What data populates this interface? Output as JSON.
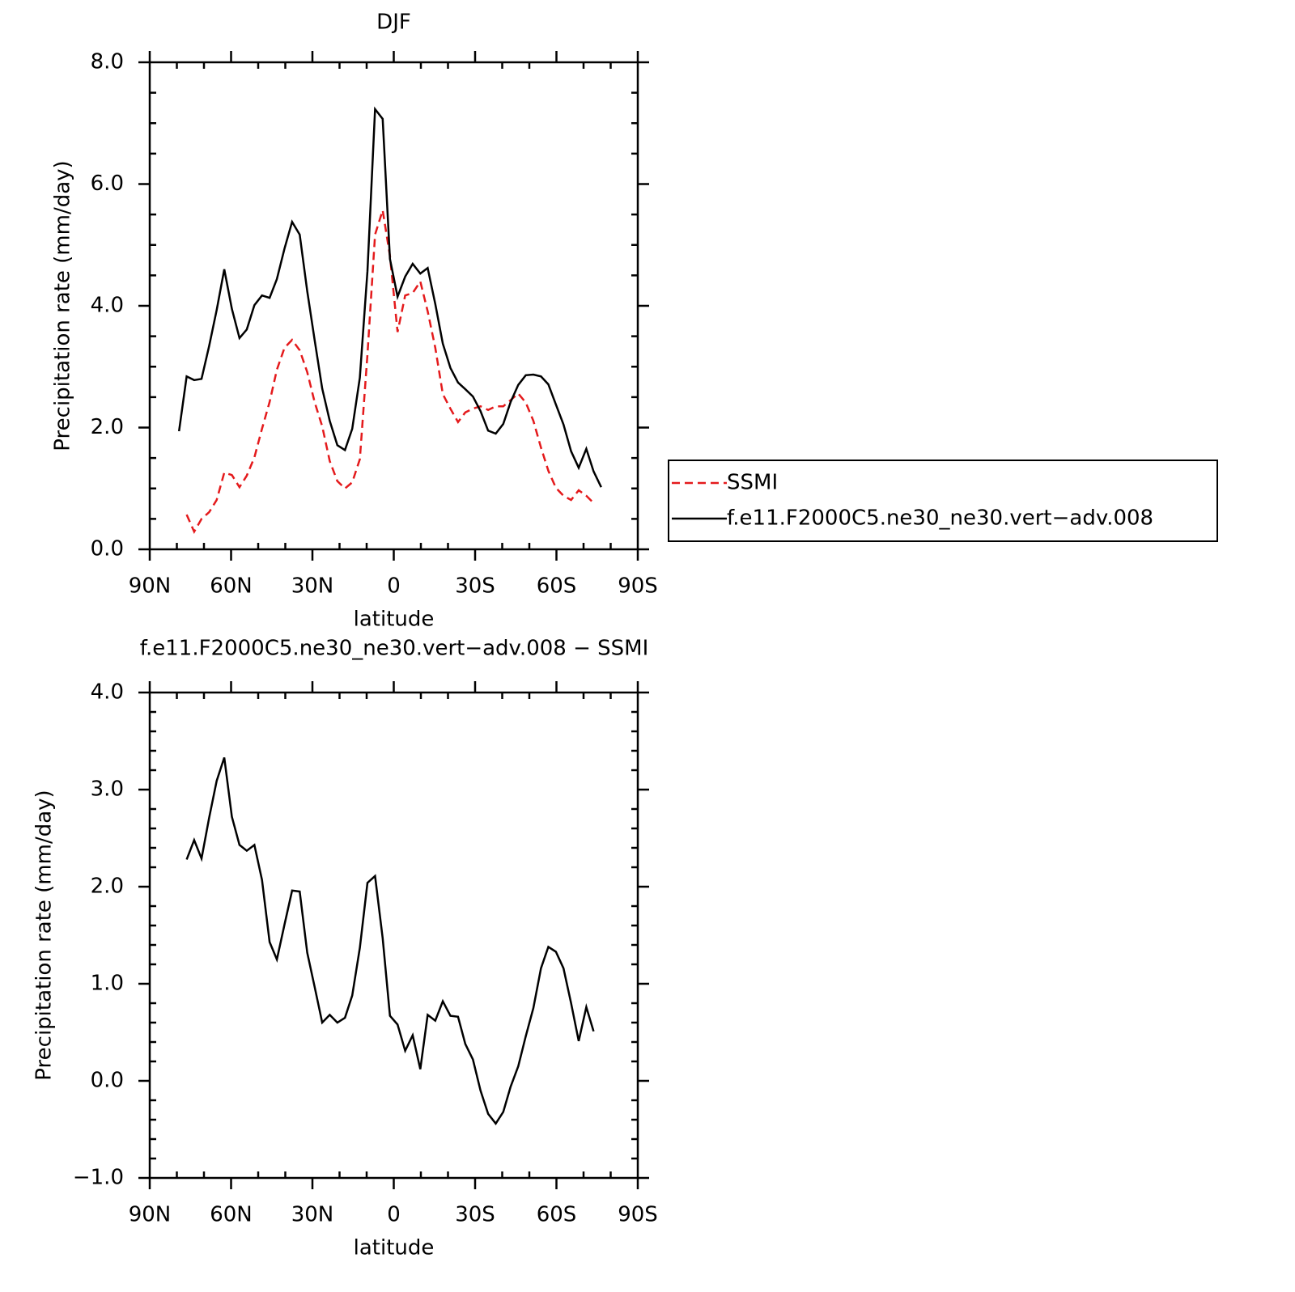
{
  "chart_data": [
    {
      "type": "line",
      "title": "DJF",
      "xlabel": "latitude",
      "ylabel": "Precipitation rate (mm/day)",
      "x": [
        79.2,
        76.4,
        73.6,
        70.9,
        68.1,
        65.3,
        62.5,
        59.7,
        56.9,
        54.2,
        51.4,
        48.6,
        45.8,
        43.1,
        40.3,
        37.5,
        34.7,
        31.9,
        29.2,
        26.4,
        23.6,
        20.8,
        18.0,
        15.3,
        12.5,
        9.7,
        6.9,
        4.1,
        1.4,
        -1.4,
        -4.2,
        -7.0,
        -9.8,
        -12.5,
        -15.3,
        -18.1,
        -20.9,
        -23.7,
        -26.4,
        -29.2,
        -32.0,
        -34.8,
        -37.6,
        -40.4,
        -43.1,
        -45.9,
        -48.7,
        -51.5,
        -54.3,
        -57.0,
        -59.8,
        -62.6,
        -65.4,
        -68.2,
        -71.0,
        -73.7,
        -76.5
      ],
      "series": [
        {
          "name": "SSMI",
          "color": "#e41a1c",
          "dashed": true,
          "values": [
            null,
            0.57,
            0.29,
            0.5,
            0.61,
            0.81,
            1.26,
            1.22,
            1.02,
            1.21,
            1.51,
            1.98,
            2.42,
            2.95,
            3.31,
            3.44,
            3.27,
            2.91,
            2.42,
            2.02,
            1.45,
            1.12,
            1.0,
            1.1,
            1.48,
            3.2,
            5.17,
            5.57,
            4.82,
            3.57,
            4.17,
            4.21,
            4.4,
            3.91,
            3.31,
            2.55,
            2.31,
            2.09,
            2.25,
            2.31,
            2.35,
            2.29,
            2.35,
            2.35,
            2.45,
            2.56,
            2.41,
            2.11,
            1.67,
            1.29,
            1.01,
            0.88,
            0.81,
            0.97,
            0.88,
            0.76,
            null
          ]
        },
        {
          "name": "f.e11.F2000C5.ne30_ne30.vert−adv.008",
          "color": "#000000",
          "dashed": false,
          "values": [
            1.94,
            2.84,
            2.78,
            2.8,
            3.34,
            3.93,
            4.6,
            3.95,
            3.47,
            3.61,
            4.01,
            4.17,
            4.13,
            4.44,
            4.94,
            5.38,
            5.17,
            4.24,
            3.44,
            2.64,
            2.11,
            1.71,
            1.63,
            1.98,
            2.82,
            4.57,
            7.23,
            7.07,
            4.77,
            4.15,
            4.48,
            4.69,
            4.53,
            4.62,
            4.03,
            3.38,
            2.98,
            2.74,
            2.63,
            2.51,
            2.27,
            1.95,
            1.9,
            2.06,
            2.42,
            2.7,
            2.86,
            2.87,
            2.84,
            2.71,
            2.38,
            2.05,
            1.61,
            1.34,
            1.65,
            1.28,
            1.02
          ]
        }
      ],
      "xlim": [
        90,
        -90
      ],
      "xticks": [
        {
          "value": 90,
          "label": "90N"
        },
        {
          "value": 60,
          "label": "60N"
        },
        {
          "value": 30,
          "label": "30N"
        },
        0,
        {
          "value": -30,
          "label": "30S"
        },
        {
          "value": -60,
          "label": "60S"
        },
        {
          "value": -90,
          "label": "90S"
        }
      ],
      "ylim": [
        0,
        8
      ],
      "yticks": [
        {
          "value": 0,
          "label": "0.0"
        },
        {
          "value": 2,
          "label": "2.0"
        },
        {
          "value": 4,
          "label": "4.0"
        },
        {
          "value": 6,
          "label": "6.0"
        },
        {
          "value": 8,
          "label": "8.0"
        }
      ],
      "legend": "right"
    },
    {
      "type": "line",
      "title": "f.e11.F2000C5.ne30_ne30.vert−adv.008 − SSMI",
      "xlabel": "latitude",
      "ylabel": "Precipitation rate (mm/day)",
      "x": [
        79.2,
        76.4,
        73.6,
        70.9,
        68.1,
        65.3,
        62.5,
        59.7,
        56.9,
        54.2,
        51.4,
        48.6,
        45.8,
        43.1,
        40.3,
        37.5,
        34.7,
        31.9,
        29.2,
        26.4,
        23.6,
        20.8,
        18.0,
        15.3,
        12.5,
        9.7,
        6.9,
        4.1,
        1.4,
        -1.4,
        -4.2,
        -7.0,
        -9.8,
        -12.5,
        -15.3,
        -18.1,
        -20.9,
        -23.7,
        -26.4,
        -29.2,
        -32.0,
        -34.8,
        -37.6,
        -40.4,
        -43.1,
        -45.9,
        -48.7,
        -51.5,
        -54.3,
        -57.0,
        -59.8,
        -62.6,
        -65.4,
        -68.2,
        -71.0,
        -73.7,
        -76.5
      ],
      "color": "#000000",
      "values": [
        null,
        2.28,
        2.48,
        2.29,
        2.71,
        3.09,
        3.33,
        2.72,
        2.43,
        2.37,
        2.43,
        2.07,
        1.43,
        1.25,
        1.61,
        1.96,
        1.95,
        1.32,
        0.97,
        0.6,
        0.68,
        0.6,
        0.65,
        0.88,
        1.37,
        2.04,
        2.11,
        1.47,
        0.67,
        0.58,
        0.31,
        0.47,
        0.12,
        0.68,
        0.62,
        0.82,
        0.67,
        0.66,
        0.38,
        0.22,
        -0.1,
        -0.34,
        -0.44,
        -0.32,
        -0.06,
        0.15,
        0.46,
        0.75,
        1.16,
        1.38,
        1.33,
        1.16,
        0.8,
        0.41,
        0.76,
        0.51,
        null
      ],
      "xlim": [
        90,
        -90
      ],
      "xticks": [
        {
          "value": 90,
          "label": "90N"
        },
        {
          "value": 60,
          "label": "60N"
        },
        {
          "value": 30,
          "label": "30N"
        },
        0,
        {
          "value": -30,
          "label": "30S"
        },
        {
          "value": -60,
          "label": "60S"
        },
        {
          "value": -90,
          "label": "90S"
        }
      ],
      "ylim": [
        -1,
        4
      ],
      "yticks": [
        {
          "value": -1,
          "label": "−1.0"
        },
        {
          "value": 0,
          "label": "0.0"
        },
        {
          "value": 1,
          "label": "1.0"
        },
        {
          "value": 2,
          "label": "2.0"
        },
        {
          "value": 3,
          "label": "3.0"
        },
        {
          "value": 4,
          "label": "4.0"
        }
      ]
    }
  ]
}
